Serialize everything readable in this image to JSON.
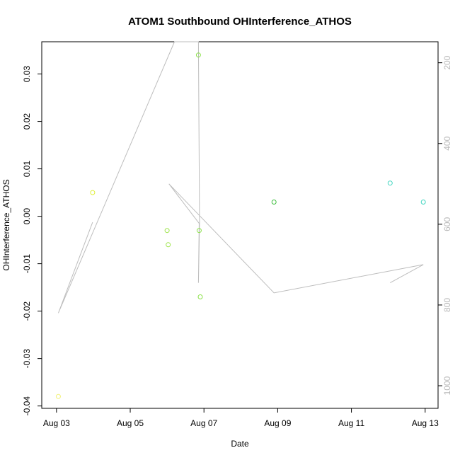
{
  "chart_data": {
    "type": "scatter",
    "title": "ATOM1 Southbound OHInterference_ATHOS",
    "xlabel": "Date",
    "ylabel": "OHInterference_ATHOS",
    "x_ticks": [
      "Aug 03",
      "Aug 05",
      "Aug 07",
      "Aug 09",
      "Aug 11",
      "Aug 13"
    ],
    "x_tick_values": [
      3,
      5,
      7,
      9,
      11,
      13
    ],
    "xlim": [
      2.6,
      13.35
    ],
    "ylim": [
      -0.0405,
      0.0368
    ],
    "y_ticks": [
      -0.04,
      -0.03,
      -0.02,
      -0.01,
      0.0,
      0.01,
      0.02,
      0.03
    ],
    "y_tick_labels": [
      "-0.04",
      "-0.03",
      "-0.02",
      "-0.01",
      "0.00",
      "0.01",
      "0.02",
      "0.03"
    ],
    "y2_ticks": [
      200,
      400,
      600,
      800,
      1000
    ],
    "y2_tick_labels": [
      "200",
      "400",
      "600",
      "800",
      "1000"
    ],
    "y2lim": [
      1056,
      148
    ],
    "grid": false,
    "points": [
      {
        "x": 3.05,
        "y": -0.038,
        "color": "#f2f27a"
      },
      {
        "x": 3.98,
        "y": 0.005,
        "color": "#e0ef3a"
      },
      {
        "x": 6.0,
        "y": -0.003,
        "color": "#9ee44c"
      },
      {
        "x": 6.03,
        "y": -0.006,
        "color": "#9ee44c"
      },
      {
        "x": 6.85,
        "y": 0.034,
        "color": "#8ce24a"
      },
      {
        "x": 6.87,
        "y": -0.003,
        "color": "#8ce24a"
      },
      {
        "x": 6.9,
        "y": -0.017,
        "color": "#8ce24a"
      },
      {
        "x": 8.9,
        "y": 0.003,
        "color": "#3fbf3f"
      },
      {
        "x": 12.05,
        "y": 0.007,
        "color": "#42d6c0"
      },
      {
        "x": 12.95,
        "y": 0.003,
        "color": "#42d6c0"
      }
    ],
    "line_series": {
      "color": "#bdbdbd",
      "points": [
        {
          "x": 3.98,
          "y2": 595
        },
        {
          "x": 3.05,
          "y2": 820
        },
        {
          "x": 6.2,
          "y2": 148
        },
        {
          "x": 6.85,
          "y2": 148
        },
        {
          "x": 6.88,
          "y2": 595
        },
        {
          "x": 6.85,
          "y2": 745
        },
        {
          "x": 6.87,
          "y2": 598
        },
        {
          "x": 6.05,
          "y2": 500
        },
        {
          "x": 8.9,
          "y2": 770
        },
        {
          "x": 12.95,
          "y2": 700
        },
        {
          "x": 12.05,
          "y2": 745
        }
      ]
    }
  }
}
